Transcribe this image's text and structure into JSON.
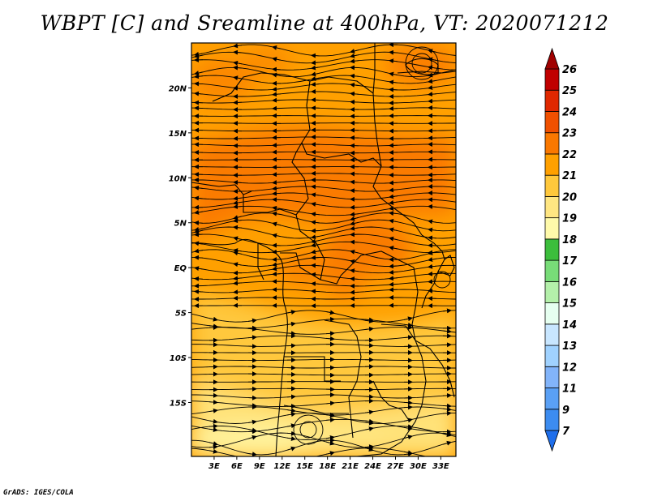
{
  "title": "WBPT [C] and Sreamline at 400hPa, VT: 2020071212",
  "credit": "GrADS: IGES/COLA",
  "map": {
    "lon_range": [
      0,
      35
    ],
    "lat_range": [
      -21,
      25
    ],
    "x_ticks": [
      {
        "value": 3,
        "label": "3E"
      },
      {
        "value": 6,
        "label": "6E"
      },
      {
        "value": 9,
        "label": "9E"
      },
      {
        "value": 12,
        "label": "12E"
      },
      {
        "value": 15,
        "label": "15E"
      },
      {
        "value": 18,
        "label": "18E"
      },
      {
        "value": 21,
        "label": "21E"
      },
      {
        "value": 24,
        "label": "24E"
      },
      {
        "value": 27,
        "label": "27E"
      },
      {
        "value": 30,
        "label": "30E"
      },
      {
        "value": 33,
        "label": "33E"
      }
    ],
    "y_ticks": [
      {
        "value": 20,
        "label": "20N"
      },
      {
        "value": 15,
        "label": "15N"
      },
      {
        "value": 10,
        "label": "10N"
      },
      {
        "value": 5,
        "label": "5N"
      },
      {
        "value": 0,
        "label": "EQ"
      },
      {
        "value": -5,
        "label": "5S"
      },
      {
        "value": -10,
        "label": "10S"
      },
      {
        "value": -15,
        "label": "15S"
      }
    ]
  },
  "colorbar": {
    "levels": [
      "7",
      "9",
      "11",
      "12",
      "13",
      "14",
      "15",
      "16",
      "17",
      "18",
      "19",
      "20",
      "21",
      "22",
      "23",
      "24",
      "25",
      "26"
    ],
    "colors": [
      "#1e6eeb",
      "#3c8cf0",
      "#5aa0f5",
      "#82b4fa",
      "#a0d2ff",
      "#c8e6ff",
      "#e6fff0",
      "#b4f0aa",
      "#78dc78",
      "#3cbe3c",
      "#fffaaa",
      "#ffe682",
      "#ffc83c",
      "#ffa000",
      "#fa7800",
      "#f05000",
      "#e02800",
      "#c00000",
      "#a00000"
    ]
  }
}
